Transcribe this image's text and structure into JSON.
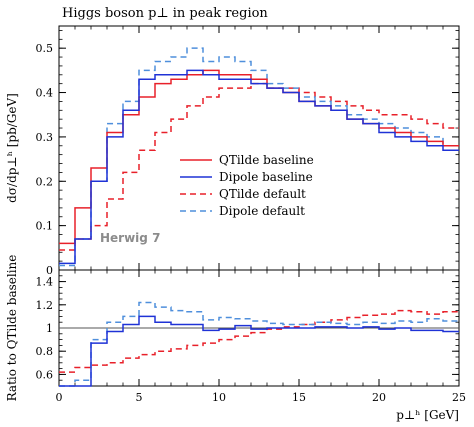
{
  "chart_data": [
    {
      "type": "line",
      "title": "Higgs boson p⊥ in peak region",
      "ylabel": "dσ/dp⊥ʰ [pb/GeV]",
      "xlim": [
        0,
        25
      ],
      "ylim": [
        0,
        0.55
      ],
      "yticks": [
        0,
        0.1,
        0.2,
        0.3,
        0.4,
        0.5
      ],
      "ytick_labels": [
        "0",
        "0.1",
        "0.2",
        "0.3",
        "0.4",
        "0.5"
      ],
      "grid": false,
      "legend_position": "center-right",
      "x_edges": [
        0,
        1,
        2,
        3,
        4,
        5,
        6,
        7,
        8,
        9,
        10,
        11,
        12,
        13,
        14,
        15,
        16,
        17,
        18,
        19,
        20,
        21,
        22,
        23,
        24,
        25
      ],
      "series": [
        {
          "name": "QTilde baseline",
          "color": "#e8202a",
          "dash": "solid",
          "values": [
            0.06,
            0.14,
            0.23,
            0.31,
            0.35,
            0.39,
            0.42,
            0.43,
            0.44,
            0.45,
            0.44,
            0.44,
            0.43,
            0.41,
            0.4,
            0.38,
            0.37,
            0.36,
            0.34,
            0.33,
            0.32,
            0.31,
            0.3,
            0.29,
            0.28
          ]
        },
        {
          "name": "Dipole baseline",
          "color": "#1f32d6",
          "dash": "solid",
          "values": [
            0.015,
            0.07,
            0.2,
            0.3,
            0.36,
            0.43,
            0.44,
            0.44,
            0.45,
            0.44,
            0.43,
            0.43,
            0.42,
            0.41,
            0.4,
            0.38,
            0.37,
            0.36,
            0.34,
            0.33,
            0.31,
            0.3,
            0.29,
            0.28,
            0.27
          ]
        },
        {
          "name": "QTilde default",
          "color": "#e8202a",
          "dash": "dashed",
          "values": [
            0.045,
            0.07,
            0.1,
            0.16,
            0.22,
            0.27,
            0.31,
            0.34,
            0.37,
            0.39,
            0.41,
            0.41,
            0.42,
            0.41,
            0.41,
            0.4,
            0.39,
            0.38,
            0.37,
            0.36,
            0.35,
            0.35,
            0.34,
            0.33,
            0.32
          ]
        },
        {
          "name": "Dipole default",
          "color": "#4f8fdc",
          "dash": "dashed",
          "values": [
            0.01,
            0.07,
            0.2,
            0.33,
            0.38,
            0.45,
            0.47,
            0.48,
            0.5,
            0.47,
            0.48,
            0.47,
            0.45,
            0.42,
            0.41,
            0.39,
            0.38,
            0.37,
            0.35,
            0.34,
            0.33,
            0.32,
            0.31,
            0.3,
            0.28
          ]
        }
      ],
      "annotations": [
        "Herwig 7"
      ]
    },
    {
      "type": "line",
      "ylabel": "Ratio to QTilde baseline",
      "xlabel": "p⊥ʰ [GeV]",
      "xlim": [
        0,
        25
      ],
      "ylim": [
        0.5,
        1.5
      ],
      "xticks": [
        0,
        5,
        10,
        15,
        20,
        25
      ],
      "xtick_labels": [
        "0",
        "5",
        "10",
        "15",
        "20",
        "25"
      ],
      "yticks": [
        0.6,
        0.8,
        1.0,
        1.2,
        1.4
      ],
      "ytick_labels": [
        "0.6",
        "0.8",
        "1",
        "1.2",
        "1.4"
      ],
      "grid": false,
      "x_edges": [
        0,
        1,
        2,
        3,
        4,
        5,
        6,
        7,
        8,
        9,
        10,
        11,
        12,
        13,
        14,
        15,
        16,
        17,
        18,
        19,
        20,
        21,
        22,
        23,
        24,
        25
      ],
      "reference_line": 1.0,
      "series": [
        {
          "ref": "QTilde baseline",
          "color": "#e8202a",
          "dash": "solid",
          "values": [
            1,
            1,
            1,
            1,
            1,
            1,
            1,
            1,
            1,
            1,
            1,
            1,
            1,
            1,
            1,
            1,
            1,
            1,
            1,
            1,
            1,
            1,
            1,
            1,
            1
          ]
        },
        {
          "ref": "Dipole baseline",
          "color": "#1f32d6",
          "dash": "solid",
          "values": [
            0.3,
            0.5,
            0.87,
            0.97,
            1.03,
            1.1,
            1.05,
            1.03,
            1.03,
            0.98,
            0.99,
            1.02,
            0.99,
            1.0,
            1.0,
            1.0,
            1.01,
            1.01,
            1.0,
            1.01,
            0.99,
            1.0,
            0.98,
            0.98,
            0.97
          ]
        },
        {
          "ref": "QTilde default",
          "color": "#e8202a",
          "dash": "dashed",
          "values": [
            0.62,
            0.66,
            0.68,
            0.7,
            0.74,
            0.77,
            0.8,
            0.82,
            0.85,
            0.87,
            0.9,
            0.93,
            0.96,
            0.99,
            1.01,
            1.03,
            1.05,
            1.07,
            1.09,
            1.11,
            1.12,
            1.15,
            1.14,
            1.12,
            1.14
          ]
        },
        {
          "ref": "Dipole default",
          "color": "#4f8fdc",
          "dash": "dashed",
          "values": [
            0.45,
            0.55,
            0.9,
            1.05,
            1.1,
            1.22,
            1.18,
            1.15,
            1.14,
            1.07,
            1.09,
            1.08,
            1.06,
            1.04,
            1.03,
            1.03,
            1.05,
            1.04,
            1.03,
            1.05,
            1.04,
            1.06,
            1.05,
            1.08,
            1.06
          ]
        }
      ]
    }
  ]
}
